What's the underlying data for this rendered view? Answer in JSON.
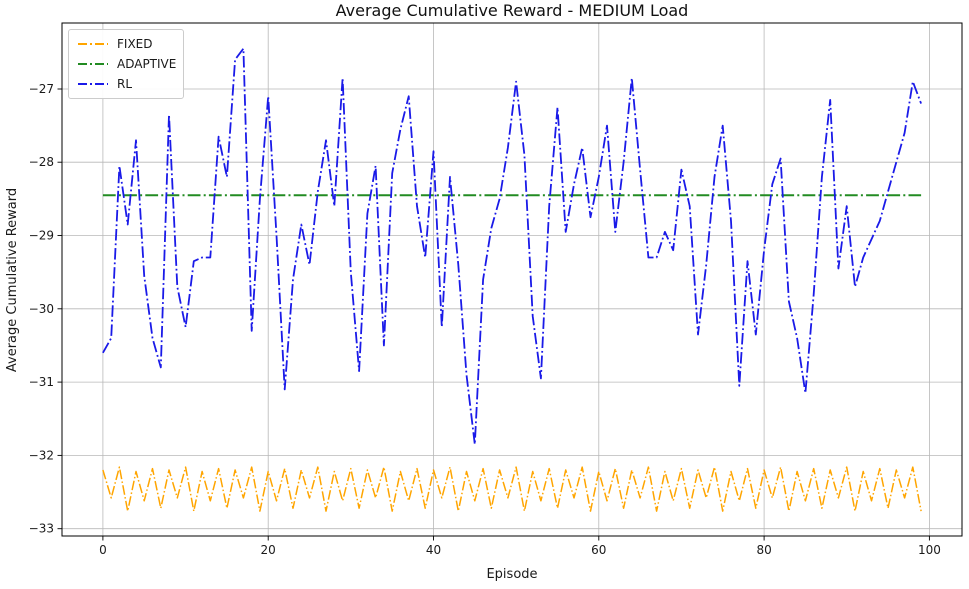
{
  "figure": {
    "title": "Average Cumulative Reward - MEDIUM Load",
    "x_axis_label": "Episode",
    "y_axis_label": "Average Cumulative Reward"
  },
  "chart_data": {
    "type": "line",
    "title": "Average Cumulative Reward - MEDIUM Load",
    "xlabel": "Episode",
    "ylabel": "Average Cumulative Reward",
    "grid": true,
    "legend_position": "upper left",
    "x_ticks": [
      0,
      20,
      40,
      60,
      80,
      100
    ],
    "y_ticks": [
      -27,
      -28,
      -29,
      -30,
      -31,
      -32,
      -33
    ],
    "xlim": [
      -4.95,
      103.95
    ],
    "ylim": [
      -33.1,
      -26.1
    ],
    "n_points": 100,
    "x_start": 0,
    "x_step": 1,
    "series": [
      {
        "name": "FIXED",
        "color": "#FFA500",
        "style": "dash-dot",
        "line_width": 1.5,
        "values": [
          -32.2,
          -32.58,
          -32.16,
          -32.76,
          -32.22,
          -32.62,
          -32.18,
          -32.72,
          -32.2,
          -32.58,
          -32.16,
          -32.76,
          -32.22,
          -32.62,
          -32.18,
          -32.72,
          -32.2,
          -32.58,
          -32.16,
          -32.76,
          -32.22,
          -32.62,
          -32.18,
          -32.72,
          -32.2,
          -32.58,
          -32.16,
          -32.76,
          -32.22,
          -32.62,
          -32.18,
          -32.72,
          -32.2,
          -32.58,
          -32.16,
          -32.76,
          -32.22,
          -32.62,
          -32.18,
          -32.72,
          -32.2,
          -32.58,
          -32.16,
          -32.76,
          -32.22,
          -32.62,
          -32.18,
          -32.72,
          -32.2,
          -32.58,
          -32.16,
          -32.76,
          -32.22,
          -32.62,
          -32.18,
          -32.72,
          -32.2,
          -32.58,
          -32.16,
          -32.76,
          -32.22,
          -32.62,
          -32.18,
          -32.72,
          -32.2,
          -32.58,
          -32.16,
          -32.76,
          -32.22,
          -32.62,
          -32.18,
          -32.72,
          -32.2,
          -32.58,
          -32.16,
          -32.76,
          -32.22,
          -32.62,
          -32.18,
          -32.72,
          -32.2,
          -32.58,
          -32.16,
          -32.76,
          -32.22,
          -32.62,
          -32.18,
          -32.72,
          -32.2,
          -32.58,
          -32.16,
          -32.76,
          -32.22,
          -32.62,
          -32.18,
          -32.72,
          -32.2,
          -32.58,
          -32.16,
          -32.76
        ]
      },
      {
        "name": "ADAPTIVE",
        "color": "#228B22",
        "style": "dash-dot",
        "line_width": 2,
        "constant_value": -28.45
      },
      {
        "name": "RL",
        "color": "#1A1AE8",
        "style": "dash-dot",
        "line_width": 1.8,
        "values": [
          -30.6,
          -30.4,
          -28.05,
          -28.85,
          -27.7,
          -29.55,
          -30.4,
          -30.8,
          -27.35,
          -29.7,
          -30.25,
          -29.35,
          -29.3,
          -29.3,
          -27.65,
          -28.2,
          -26.6,
          -26.45,
          -30.3,
          -28.5,
          -27.1,
          -29.0,
          -31.1,
          -29.6,
          -28.85,
          -29.4,
          -28.4,
          -27.7,
          -28.6,
          -26.85,
          -29.5,
          -30.85,
          -28.7,
          -28.05,
          -30.5,
          -28.15,
          -27.55,
          -27.1,
          -28.6,
          -29.3,
          -27.85,
          -30.25,
          -28.2,
          -29.4,
          -30.9,
          -31.85,
          -29.6,
          -28.9,
          -28.5,
          -27.8,
          -26.9,
          -27.9,
          -30.1,
          -30.95,
          -28.6,
          -27.25,
          -28.95,
          -28.3,
          -27.8,
          -28.75,
          -28.2,
          -27.5,
          -28.95,
          -28.0,
          -26.85,
          -28.1,
          -29.3,
          -29.3,
          -28.95,
          -29.2,
          -28.1,
          -28.6,
          -30.35,
          -29.4,
          -28.2,
          -27.5,
          -28.8,
          -31.05,
          -29.35,
          -30.35,
          -29.2,
          -28.3,
          -27.95,
          -29.9,
          -30.4,
          -31.15,
          -29.8,
          -28.2,
          -27.15,
          -29.45,
          -28.6,
          -29.7,
          -29.3,
          -29.05,
          -28.8,
          -28.4,
          -28.0,
          -27.6,
          -26.9,
          -27.2
        ]
      }
    ]
  }
}
